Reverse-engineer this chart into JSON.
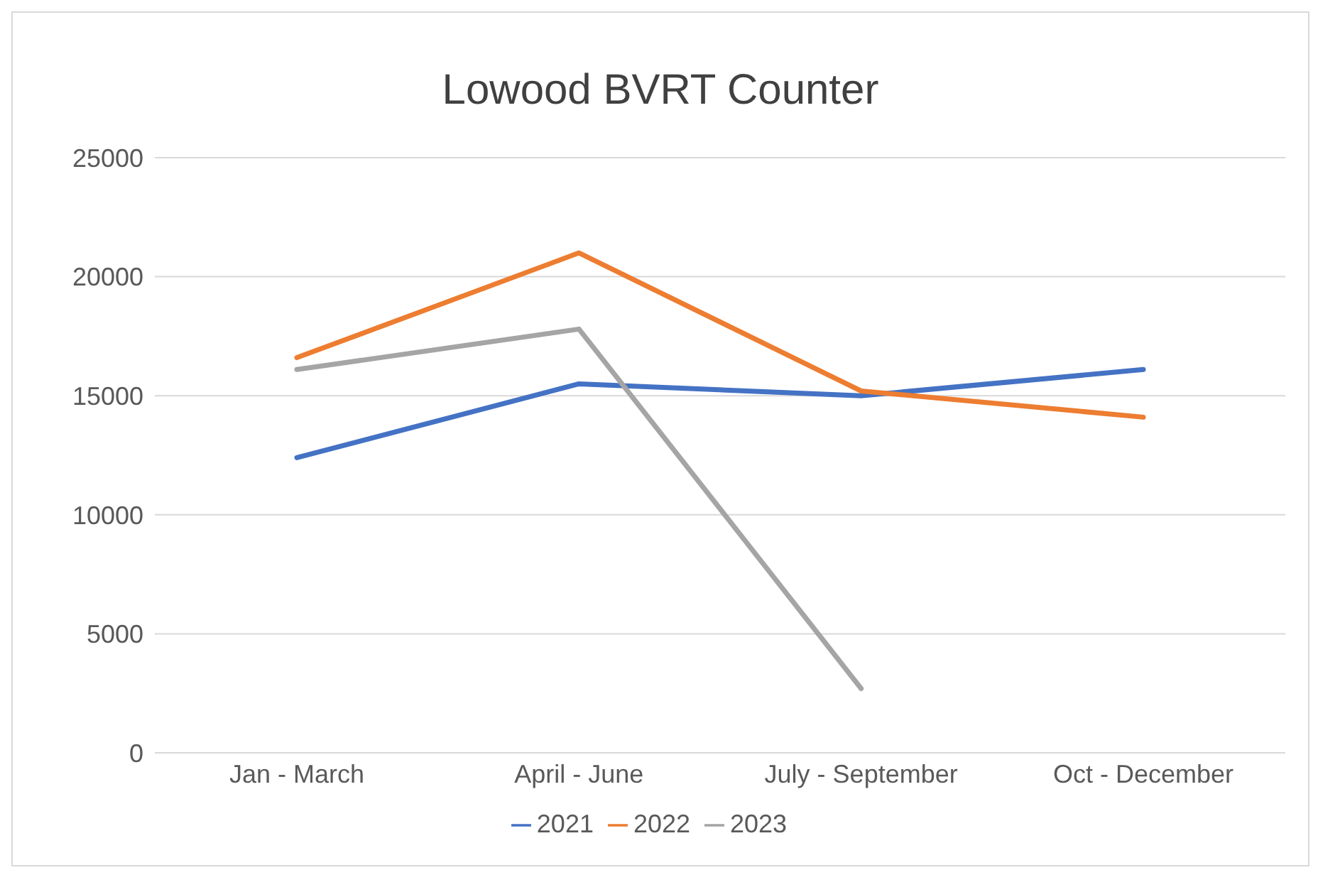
{
  "chart_data": {
    "type": "line",
    "title": "Lowood BVRT Counter",
    "categories": [
      "Jan - March",
      "April - June",
      "July - September",
      "Oct - December"
    ],
    "series": [
      {
        "name": "2021",
        "color": "#4472c4",
        "values": [
          12400,
          15500,
          15000,
          16100
        ]
      },
      {
        "name": "2022",
        "color": "#ed7d31",
        "values": [
          16600,
          21000,
          15200,
          14100
        ]
      },
      {
        "name": "2023",
        "color": "#a5a5a5",
        "values": [
          16100,
          17800,
          2700,
          null
        ]
      }
    ],
    "ylim": [
      0,
      25000
    ],
    "yticks": [
      0,
      5000,
      10000,
      15000,
      20000,
      25000
    ],
    "grid": "y",
    "legend": "bottom",
    "marker": "none",
    "line_style": "solid"
  }
}
